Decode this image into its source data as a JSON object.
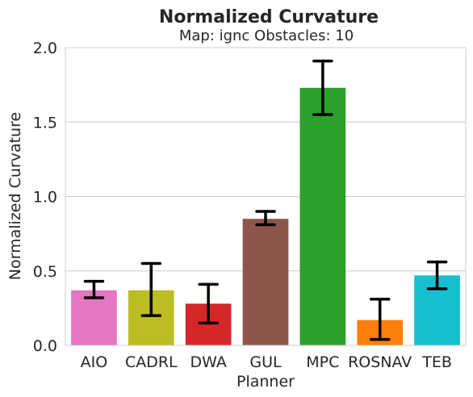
{
  "chart_data": {
    "type": "bar",
    "title": "Normalized Curvature",
    "subtitle": "Map: ignc Obstacles: 10",
    "xlabel": "Planner",
    "ylabel": "Normalized Curvature",
    "ylim": [
      0,
      2.0
    ],
    "yticks": [
      0.0,
      0.5,
      1.0,
      1.5,
      2.0
    ],
    "ytick_labels": [
      "0.0",
      "0.5",
      "1.0",
      "1.5",
      "2.0"
    ],
    "grid": true,
    "categories": [
      "AIO",
      "CADRL",
      "DWA",
      "GUL",
      "MPC",
      "ROSNAV",
      "TEB"
    ],
    "values": [
      0.37,
      0.37,
      0.28,
      0.85,
      1.73,
      0.17,
      0.47
    ],
    "error_low": [
      0.32,
      0.2,
      0.15,
      0.81,
      1.55,
      0.04,
      0.38
    ],
    "error_high": [
      0.43,
      0.55,
      0.41,
      0.9,
      1.91,
      0.31,
      0.56
    ],
    "colors": [
      "#e377c2",
      "#bcbd22",
      "#d62728",
      "#8c564b",
      "#2ca02c",
      "#ff7f0e",
      "#17becf"
    ]
  }
}
